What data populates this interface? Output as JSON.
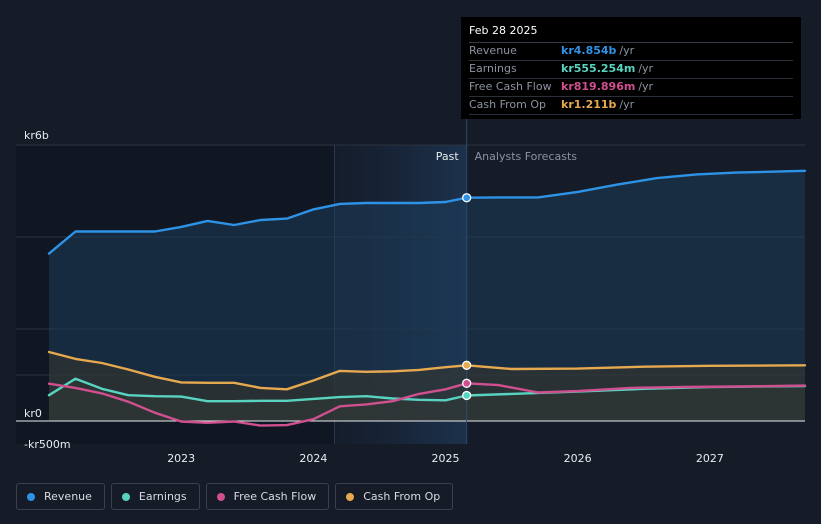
{
  "chart_data": {
    "type": "line",
    "title": "",
    "y_ticks": [
      {
        "value": 6000,
        "label": "kr6b"
      },
      {
        "value": 0,
        "label": "kr0"
      },
      {
        "value": -500,
        "label": "-kr500m"
      }
    ],
    "x_ticks": [
      {
        "value": 2023,
        "label": "2023"
      },
      {
        "value": 2024,
        "label": "2024"
      },
      {
        "value": 2025,
        "label": "2025"
      },
      {
        "value": 2026,
        "label": "2026"
      },
      {
        "value": 2027,
        "label": "2027"
      }
    ],
    "xlim": [
      2021.75,
      2027.72
    ],
    "ylim": [
      -500,
      6000
    ],
    "divider_x": 2025.16,
    "highlight_start": 2024.16,
    "past_label": "Past",
    "forecast_label": "Analysts Forecasts",
    "series": [
      {
        "name": "Revenue",
        "color": "#2e93e6",
        "fill": true,
        "points": [
          [
            2022.0,
            3640
          ],
          [
            2022.2,
            4120
          ],
          [
            2022.5,
            4120
          ],
          [
            2022.8,
            4120
          ],
          [
            2023.0,
            4220
          ],
          [
            2023.2,
            4350
          ],
          [
            2023.4,
            4260
          ],
          [
            2023.6,
            4370
          ],
          [
            2023.8,
            4400
          ],
          [
            2024.0,
            4600
          ],
          [
            2024.2,
            4720
          ],
          [
            2024.4,
            4740
          ],
          [
            2024.6,
            4740
          ],
          [
            2024.8,
            4740
          ],
          [
            2025.0,
            4760
          ],
          [
            2025.16,
            4854
          ],
          [
            2025.4,
            4860
          ],
          [
            2025.7,
            4860
          ],
          [
            2026.0,
            4980
          ],
          [
            2026.3,
            5140
          ],
          [
            2026.6,
            5280
          ],
          [
            2026.9,
            5360
          ],
          [
            2027.2,
            5400
          ],
          [
            2027.72,
            5440
          ]
        ]
      },
      {
        "name": "Earnings",
        "color": "#58d3c0",
        "fill": true,
        "points": [
          [
            2022.0,
            560
          ],
          [
            2022.2,
            920
          ],
          [
            2022.4,
            700
          ],
          [
            2022.6,
            560
          ],
          [
            2022.8,
            540
          ],
          [
            2023.0,
            530
          ],
          [
            2023.2,
            430
          ],
          [
            2023.4,
            430
          ],
          [
            2023.6,
            440
          ],
          [
            2023.8,
            440
          ],
          [
            2024.0,
            480
          ],
          [
            2024.2,
            520
          ],
          [
            2024.4,
            540
          ],
          [
            2024.6,
            490
          ],
          [
            2024.8,
            460
          ],
          [
            2025.0,
            450
          ],
          [
            2025.16,
            555
          ],
          [
            2025.5,
            590
          ],
          [
            2026.0,
            640
          ],
          [
            2026.5,
            700
          ],
          [
            2027.0,
            740
          ],
          [
            2027.72,
            760
          ]
        ]
      },
      {
        "name": "Free Cash Flow",
        "color": "#d0508f",
        "fill": false,
        "points": [
          [
            2022.0,
            810
          ],
          [
            2022.2,
            720
          ],
          [
            2022.4,
            600
          ],
          [
            2022.6,
            420
          ],
          [
            2022.8,
            180
          ],
          [
            2023.0,
            -10
          ],
          [
            2023.2,
            -40
          ],
          [
            2023.4,
            -10
          ],
          [
            2023.6,
            -100
          ],
          [
            2023.8,
            -90
          ],
          [
            2024.0,
            40
          ],
          [
            2024.2,
            320
          ],
          [
            2024.4,
            360
          ],
          [
            2024.6,
            430
          ],
          [
            2024.8,
            590
          ],
          [
            2025.0,
            690
          ],
          [
            2025.16,
            819
          ],
          [
            2025.4,
            780
          ],
          [
            2025.7,
            620
          ],
          [
            2026.0,
            650
          ],
          [
            2026.4,
            720
          ],
          [
            2026.8,
            740
          ],
          [
            2027.2,
            750
          ],
          [
            2027.72,
            770
          ]
        ]
      },
      {
        "name": "Cash From Op",
        "color": "#e6a94f",
        "fill": true,
        "points": [
          [
            2022.0,
            1500
          ],
          [
            2022.2,
            1350
          ],
          [
            2022.4,
            1260
          ],
          [
            2022.6,
            1120
          ],
          [
            2022.8,
            960
          ],
          [
            2023.0,
            840
          ],
          [
            2023.2,
            830
          ],
          [
            2023.4,
            830
          ],
          [
            2023.6,
            720
          ],
          [
            2023.8,
            690
          ],
          [
            2024.0,
            880
          ],
          [
            2024.2,
            1090
          ],
          [
            2024.4,
            1070
          ],
          [
            2024.6,
            1080
          ],
          [
            2024.8,
            1110
          ],
          [
            2025.0,
            1170
          ],
          [
            2025.16,
            1211
          ],
          [
            2025.5,
            1130
          ],
          [
            2026.0,
            1140
          ],
          [
            2026.5,
            1180
          ],
          [
            2027.0,
            1200
          ],
          [
            2027.72,
            1210
          ]
        ]
      }
    ]
  },
  "tooltip": {
    "date": "Feb 28 2025",
    "rows": [
      {
        "label": "Revenue",
        "value": "kr4.854b",
        "unit": "/yr",
        "color": "#2e93e6"
      },
      {
        "label": "Earnings",
        "value": "kr555.254m",
        "unit": "/yr",
        "color": "#58d3c0"
      },
      {
        "label": "Free Cash Flow",
        "value": "kr819.896m",
        "unit": "/yr",
        "color": "#d0508f"
      },
      {
        "label": "Cash From Op",
        "value": "kr1.211b",
        "unit": "/yr",
        "color": "#e6a94f"
      }
    ]
  },
  "legend": [
    {
      "label": "Revenue",
      "color": "#2e93e6"
    },
    {
      "label": "Earnings",
      "color": "#58d3c0"
    },
    {
      "label": "Free Cash Flow",
      "color": "#d0508f"
    },
    {
      "label": "Cash From Op",
      "color": "#e6a94f"
    }
  ]
}
